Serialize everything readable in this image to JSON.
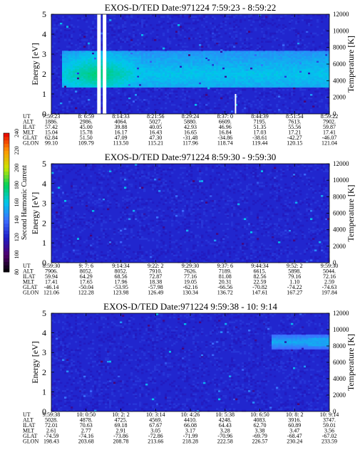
{
  "colorbar": {
    "label": "Second Harmonic Current",
    "ticks": [
      "80",
      "100",
      "120",
      "140",
      "160",
      "180",
      "200",
      "220",
      "240"
    ],
    "range": [
      80,
      240
    ]
  },
  "chart_data": [
    {
      "type": "heatmap",
      "title": "EXOS-D/TED   Date:971224   7:59:23 - 8:59:22",
      "ylabel": "Energy [eV]",
      "ylabel_right": "Temperature [K]",
      "ylim": [
        0,
        5
      ],
      "y_ticks": [
        "0",
        "1",
        "2",
        "3",
        "4",
        "5"
      ],
      "ylim_right": [
        0,
        12000
      ],
      "y_ticks_right": [
        "0",
        "2000",
        "4000",
        "6000",
        "8000",
        "10000",
        "12000"
      ],
      "band": {
        "energy_low": 1.3,
        "energy_high": 3.2,
        "peak_energy": 2.0,
        "peak_value": 175
      },
      "gaps": [
        "8: 6:59",
        "8:10:10"
      ],
      "orbit_table": {
        "row_labels": [
          "UT",
          "ALT",
          "ILAT",
          "MLT",
          "GLAT",
          "GLON"
        ],
        "columns": [
          [
            "7:59:23",
            "1886.",
            "57.42",
            "15.04",
            "62.84",
            "99.10"
          ],
          [
            "8: 6:59",
            "2986.",
            "45.00",
            "15.78",
            "51.50",
            "109.79"
          ],
          [
            "8:14:33",
            "4064.",
            "39.88",
            "16.17",
            "47.09",
            "113.50"
          ],
          [
            "8:21:56",
            "5027.",
            "40.05",
            "16.43",
            "47.30",
            "115.21"
          ],
          [
            "8:29:24",
            "5880.",
            "42.93",
            "16.65",
            "-31.48",
            "117.96"
          ],
          [
            "8:37: 0",
            "6609.",
            "46.96",
            "16.84",
            "-34.86",
            "118.74"
          ],
          [
            "8:44:39",
            "7195.",
            "51.35",
            "17.03",
            "-38.61",
            "119.44"
          ],
          [
            "8:51:54",
            "7613.",
            "55.56",
            "17.21",
            "-42.27",
            "120.15"
          ],
          [
            "8:59:22",
            "7902.",
            "59.87",
            "17.41",
            "-46.07",
            "121.04"
          ]
        ]
      }
    },
    {
      "type": "heatmap",
      "title": "EXOS-D/TED   Date:971224   8:59:30 - 9:59:30",
      "ylabel": "Energy [eV]",
      "ylabel_right": "Temperature [K]",
      "ylim": [
        0,
        5
      ],
      "y_ticks": [
        "0",
        "1",
        "2",
        "3",
        "4",
        "5"
      ],
      "ylim_right": [
        0,
        12000
      ],
      "y_ticks_right": [
        "0",
        "2000",
        "4000",
        "6000",
        "8000",
        "10000",
        "12000"
      ],
      "orbit_table": {
        "row_labels": [
          "UT",
          "ALT",
          "ILAT",
          "MLT",
          "GLAT",
          "GLON"
        ],
        "columns": [
          [
            "8:59:30",
            "7906.",
            "59.94",
            "17.41",
            "-46.14",
            "121.06"
          ],
          [
            "9: 7: 6",
            "8052.",
            "64.29",
            "17.65",
            "-50.04",
            "122.28"
          ],
          [
            "9:14:34",
            "8052.",
            "68.56",
            "17.96",
            "-53.95",
            "123.98"
          ],
          [
            "9:22: 2",
            "7910.",
            "72.87",
            "18.38",
            "-57.98",
            "126.49"
          ],
          [
            "9:29:30",
            "7626.",
            "77.16",
            "19.05",
            "-62.16",
            "130.34"
          ],
          [
            "9:37: 6",
            "7189.",
            "81.08",
            "20.31",
            "-66.56",
            "136.72"
          ],
          [
            "9:44:34",
            "6615.",
            "82.56",
            "22.59",
            "-70.82",
            "147.61"
          ],
          [
            "9:52: 2",
            "5898.",
            "79.16",
            "1.10",
            "-74.22",
            "167.27"
          ],
          [
            "9:59:30",
            "5044.",
            "72.16",
            "2.59",
            "-74.63",
            "197.84"
          ]
        ]
      }
    },
    {
      "type": "heatmap",
      "title": "EXOS-D/TED   Date:971224   9:59:38 - 10: 9:14",
      "ylabel": "Energy [eV]",
      "ylabel_right": "Temperature [K]",
      "ylim": [
        0,
        5
      ],
      "y_ticks": [
        "0",
        "1",
        "2",
        "3",
        "4",
        "5"
      ],
      "ylim_right": [
        0,
        12000
      ],
      "y_ticks_right": [
        "0",
        "2000",
        "4000",
        "6000",
        "8000",
        "10000",
        "12000"
      ],
      "feature": {
        "start": "10: 8: 2",
        "energy_low": 3.2,
        "energy_high": 3.9,
        "peak_value": 150
      },
      "orbit_table": {
        "row_labels": [
          "UT",
          "ALT",
          "ILAT",
          "MLT",
          "GLAT",
          "GLON"
        ],
        "columns": [
          [
            "9:59:38",
            "5028.",
            "72.01",
            "2.61",
            "-74.59",
            "198.43"
          ],
          [
            "10: 0:50",
            "4878.",
            "70.63",
            "2.77",
            "-74.16",
            "203.68"
          ],
          [
            "10: 2: 2",
            "4725.",
            "69.18",
            "2.91",
            "-73.86",
            "208.78"
          ],
          [
            "10: 3:14",
            "4569.",
            "67.67",
            "3.05",
            "-72.86",
            "213.66"
          ],
          [
            "10: 4:26",
            "4410.",
            "66.08",
            "3.17",
            "-71.99",
            "218.28"
          ],
          [
            "10: 5:38",
            "4248.",
            "64.43",
            "3.28",
            "-70.96",
            "222.58"
          ],
          [
            "10: 6:50",
            "4083.",
            "62.70",
            "3.38",
            "-69.79",
            "226.57"
          ],
          [
            "10: 8: 2",
            "3916.",
            "60.89",
            "3.47",
            "-68.47",
            "230.24"
          ],
          [
            "10: 9:14",
            "3747.",
            "59.01",
            "3.56",
            "-67.02",
            "233.59"
          ]
        ]
      }
    }
  ]
}
